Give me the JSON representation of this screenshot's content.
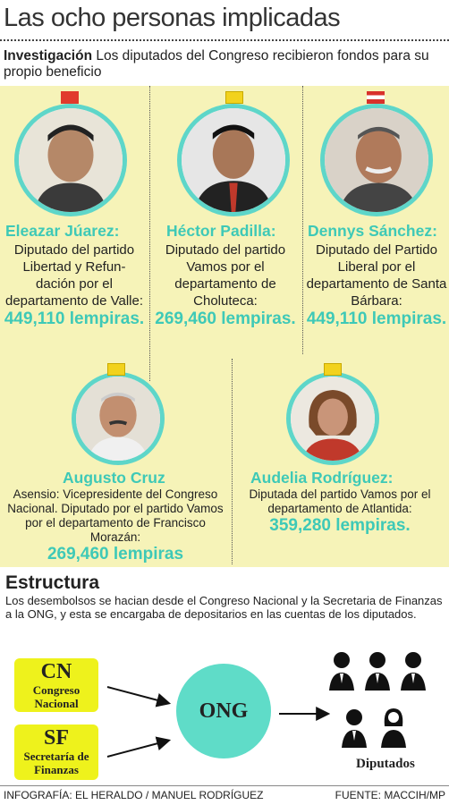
{
  "title": "Las ocho personas implicadas",
  "intro": {
    "label": "Investigación",
    "text": " Los diputados del  Congreso recibieron fondos para su propio beneficio"
  },
  "people": [
    {
      "name": "Eleazar Júarez:",
      "desc": "Diputado del partido Libertad y Refun-dación por el departamento de Valle: ",
      "amount": "449,110 lempiras.",
      "flag": "libre-flag-icon"
    },
    {
      "name": "Héctor Padilla:",
      "desc": "Diputado del partido Vamos por el departamento de Choluteca:",
      "amount": "269,460 lempiras.",
      "flag": "vamos-flag-icon"
    },
    {
      "name": "Dennys Sánchez:",
      "desc": "Diputado del Partido Liberal por el departamento de Santa Bárbara:",
      "amount": "449,110 lempiras.",
      "flag": "liberal-flag-icon"
    },
    {
      "name": "Augusto Cruz",
      "desc": "Asensio: Vicepresidente del Congreso Nacional. Diputado por el partido Vamos por el departamento de Francisco Morazán:",
      "amount": "269,460 lempiras",
      "flag": "vamos-flag-icon"
    },
    {
      "name": "Audelia Rodríguez:",
      "desc": "Diputada del partido Vamos por el departamento de Atlantida:",
      "amount": "359,280 lempiras.",
      "flag": "vamos-flag-icon"
    }
  ],
  "estructura": {
    "title": "Estructura",
    "text": "Los desembolsos se hacian desde el Congreso Nacional y la Secretaria de Finanzas a la ONG, y esta se encargaba de depositarios en las cuentas de los diputados."
  },
  "diagram": {
    "cn": {
      "abbr": "CN",
      "full": "Congreso Nacional"
    },
    "sf": {
      "abbr": "SF",
      "full": "Secretaría de Finanzas"
    },
    "ong": "ONG",
    "diputados": "Diputados"
  },
  "footer": {
    "credit": "INFOGRAFÍA: EL HERALDO / MANUEL RODRÍGUEZ",
    "source": "FUENTE: MACCIH/MP"
  },
  "colors": {
    "panel": "#f6f3b8",
    "accent": "#3ec9b7",
    "box": "#eef21c",
    "ong": "#5fdcc8"
  }
}
